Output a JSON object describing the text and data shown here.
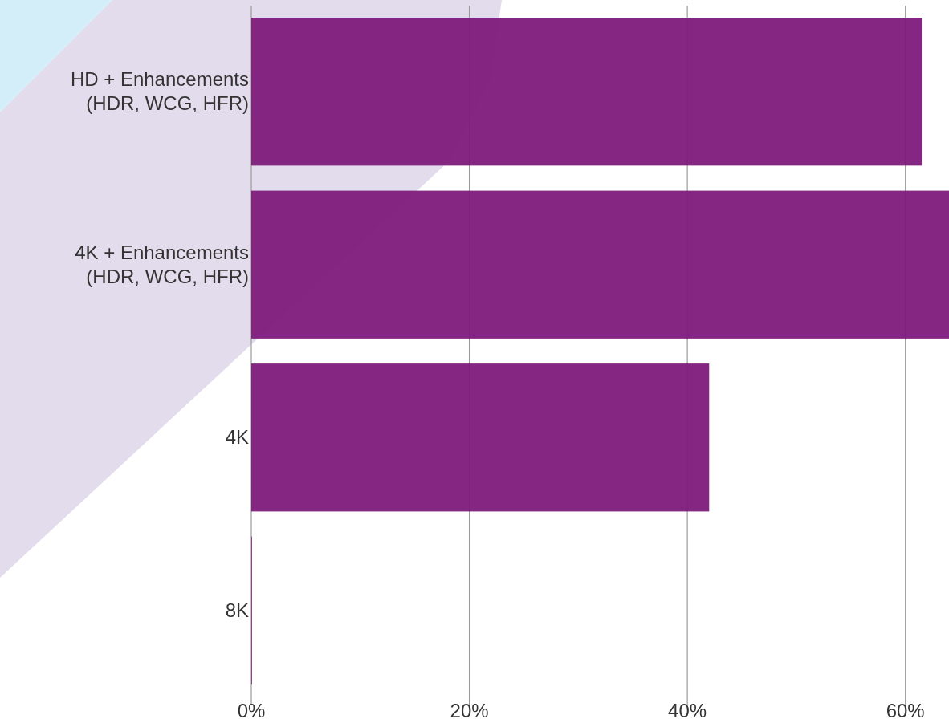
{
  "chart_data": {
    "type": "bar",
    "orientation": "horizontal",
    "categories": [
      "HD + Enhancements\n(HDR, WCG, HFR)",
      "4K + Enhancements\n(HDR, WCG, HFR)",
      "4K",
      "8K"
    ],
    "values": [
      61.5,
      64,
      42,
      0
    ],
    "color": "#7e1a7c",
    "xlim": [
      0,
      64
    ],
    "xticks": [
      {
        "value": 0,
        "label": "0%"
      },
      {
        "value": 20,
        "label": "20%"
      },
      {
        "value": 40,
        "label": "40%"
      },
      {
        "value": 60,
        "label": "60%"
      }
    ],
    "grid": "x"
  }
}
